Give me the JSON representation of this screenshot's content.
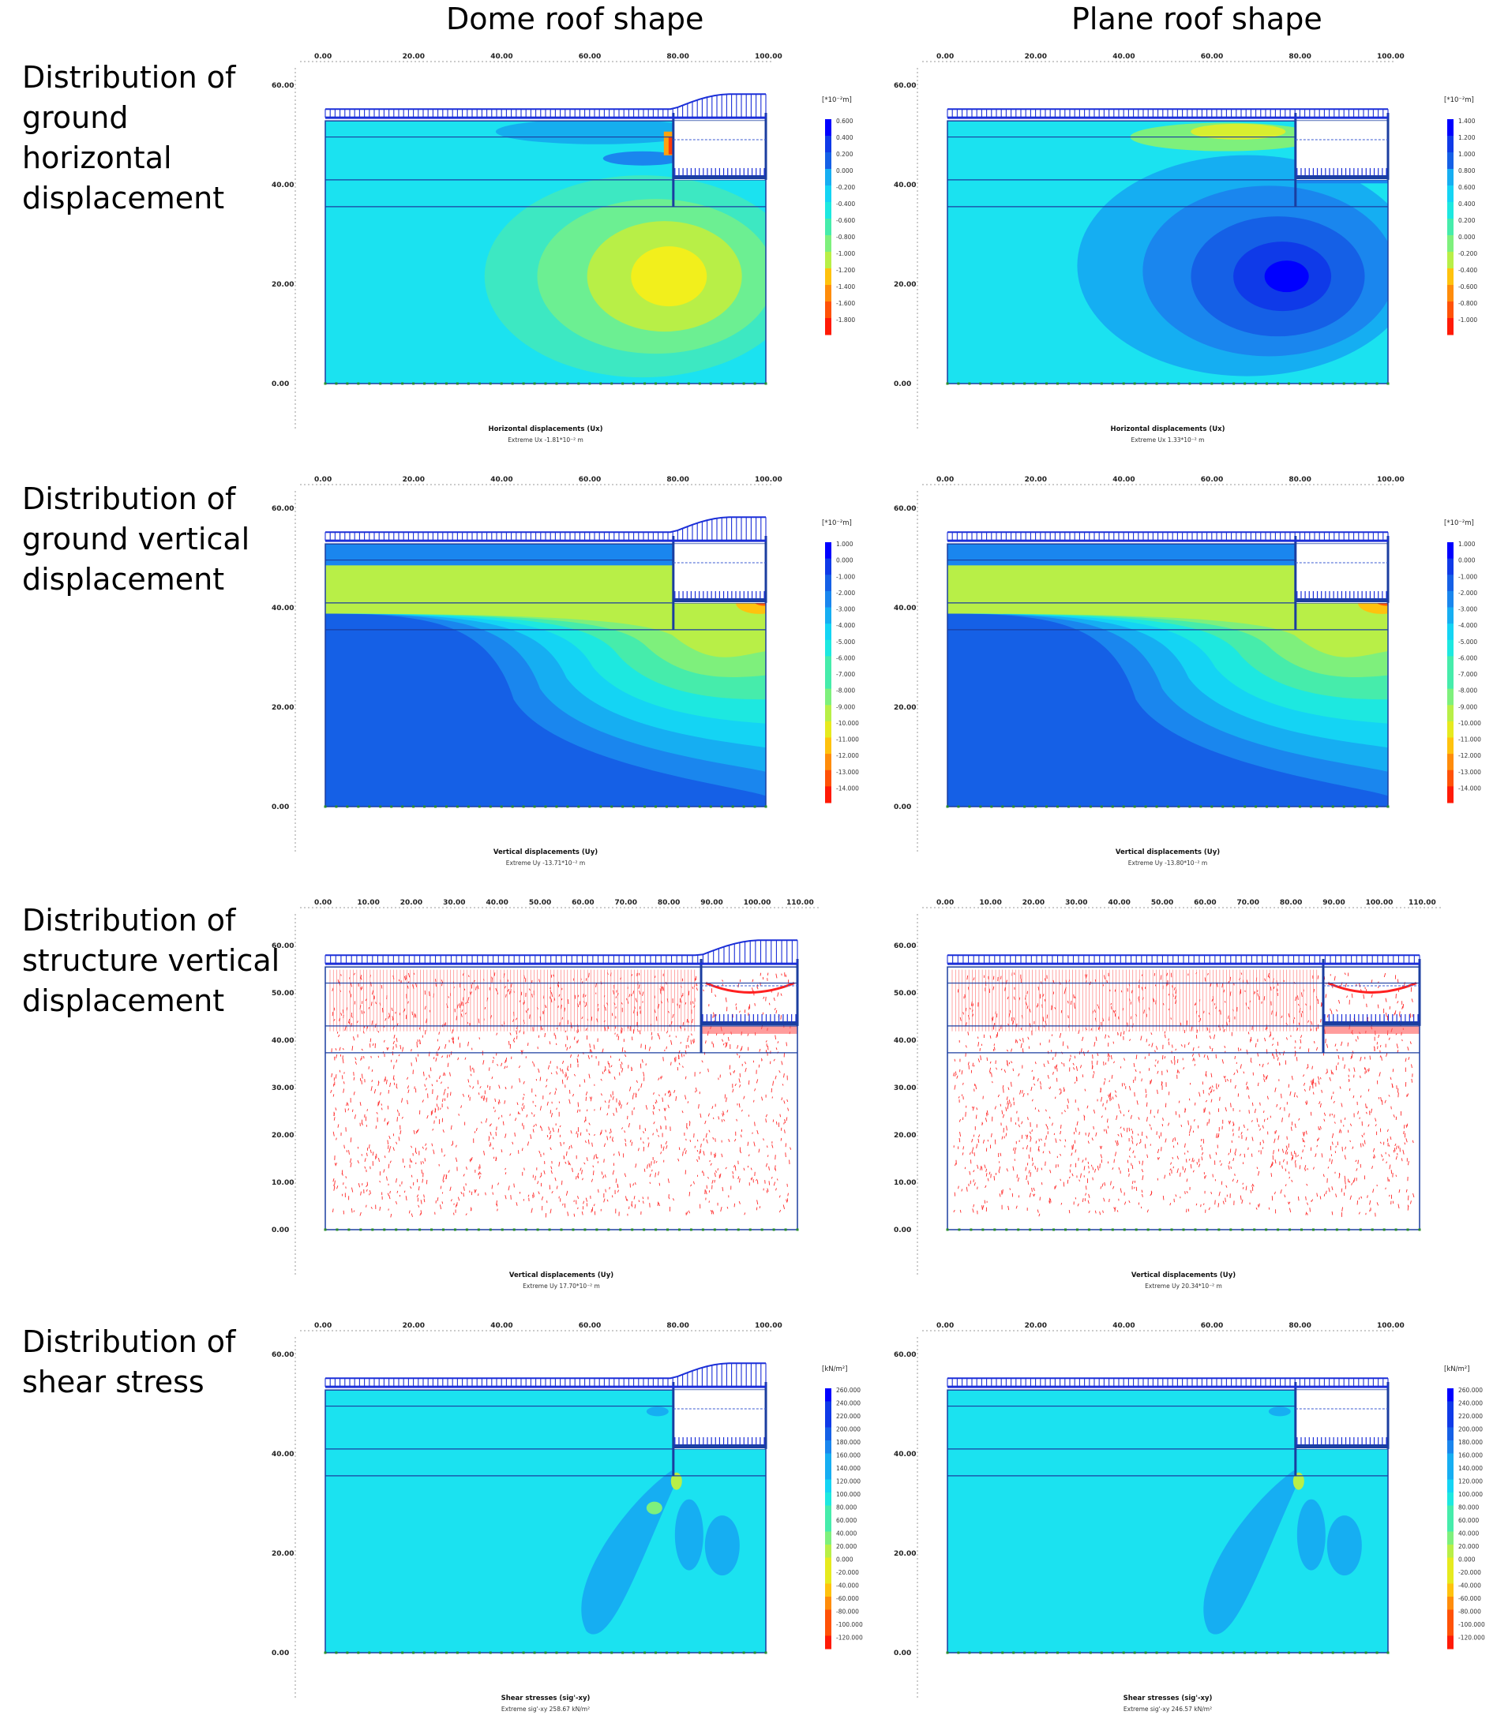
{
  "columns": [
    "Dome roof shape",
    "Plane roof shape"
  ],
  "rows": [
    {
      "label": "Distribution of\nground\nhorizontal\ndisplacement",
      "panels": [
        {
          "x_ticks": [
            "0.00",
            "20.00",
            "40.00",
            "60.00",
            "80.00",
            "100.00"
          ],
          "y_ticks": [
            "60.00",
            "40.00",
            "20.00",
            "0.00"
          ],
          "unit": "[*10⁻²m]",
          "legend": [
            "0.600",
            "0.400",
            "0.200",
            "0.000",
            "-0.200",
            "-0.400",
            "-0.600",
            "-0.800",
            "-1.000",
            "-1.200",
            "-1.400",
            "-1.600",
            "-1.800"
          ],
          "palette": "reverse",
          "caption": "Horizontal displacements (Ux)",
          "extreme": "Extreme Ux -1.81*10⁻² m"
        },
        {
          "x_ticks": [
            "0.00",
            "20.00",
            "40.00",
            "60.00",
            "80.00",
            "100.00"
          ],
          "y_ticks": [
            "60.00",
            "40.00",
            "20.00",
            "0.00"
          ],
          "unit": "[*10⁻²m]",
          "legend": [
            "1.400",
            "1.200",
            "1.000",
            "0.800",
            "0.600",
            "0.400",
            "0.200",
            "0.000",
            "-0.200",
            "-0.400",
            "-0.600",
            "-0.800",
            "-1.000"
          ],
          "palette": "normal",
          "caption": "Horizontal displacements (Ux)",
          "extreme": "Extreme Ux 1.33*10⁻² m"
        }
      ]
    },
    {
      "label": "Distribution of\nground vertical\ndisplacement",
      "panels": [
        {
          "x_ticks": [
            "0.00",
            "20.00",
            "40.00",
            "60.00",
            "80.00",
            "100.00"
          ],
          "y_ticks": [
            "60.00",
            "40.00",
            "20.00",
            "0.00"
          ],
          "unit": "[*10⁻²m]",
          "legend": [
            "1.000",
            "0.000",
            "-1.000",
            "-2.000",
            "-3.000",
            "-4.000",
            "-5.000",
            "-6.000",
            "-7.000",
            "-8.000",
            "-9.000",
            "-10.000",
            "-11.000",
            "-12.000",
            "-13.000",
            "-14.000"
          ],
          "palette": "reverse",
          "caption": "Vertical displacements (Uy)",
          "extreme": "Extreme Uy -13.71*10⁻² m"
        },
        {
          "x_ticks": [
            "0.00",
            "20.00",
            "40.00",
            "60.00",
            "80.00",
            "100.00"
          ],
          "y_ticks": [
            "60.00",
            "40.00",
            "20.00",
            "0.00"
          ],
          "unit": "[*10⁻²m]",
          "legend": [
            "1.000",
            "0.000",
            "-1.000",
            "-2.000",
            "-3.000",
            "-4.000",
            "-5.000",
            "-6.000",
            "-7.000",
            "-8.000",
            "-9.000",
            "-10.000",
            "-11.000",
            "-12.000",
            "-13.000",
            "-14.000"
          ],
          "palette": "reverse",
          "caption": "Vertical displacements (Uy)",
          "extreme": "Extreme Uy -13.80*10⁻² m"
        }
      ]
    },
    {
      "label": "Distribution of\nstructure vertical\ndisplacement",
      "panels": [
        {
          "x_ticks": [
            "0.00",
            "10.00",
            "20.00",
            "30.00",
            "40.00",
            "50.00",
            "60.00",
            "70.00",
            "80.00",
            "90.00",
            "100.00",
            "110.00"
          ],
          "y_ticks": [
            "60.00",
            "50.00",
            "40.00",
            "30.00",
            "20.00",
            "10.00",
            "0.00"
          ],
          "caption": "Vertical displacements (Uy)",
          "extreme": "Extreme Uy 17.70*10⁻² m"
        },
        {
          "x_ticks": [
            "0.00",
            "10.00",
            "20.00",
            "30.00",
            "40.00",
            "50.00",
            "60.00",
            "70.00",
            "80.00",
            "90.00",
            "100.00",
            "110.00"
          ],
          "y_ticks": [
            "60.00",
            "50.00",
            "40.00",
            "30.00",
            "20.00",
            "10.00",
            "0.00"
          ],
          "caption": "Vertical displacements (Uy)",
          "extreme": "Extreme Uy 20.34*10⁻² m"
        }
      ]
    },
    {
      "label": "Distribution of\nshear stress",
      "panels": [
        {
          "x_ticks": [
            "0.00",
            "20.00",
            "40.00",
            "60.00",
            "80.00",
            "100.00"
          ],
          "y_ticks": [
            "60.00",
            "40.00",
            "20.00",
            "0.00"
          ],
          "unit": "[kN/m²]",
          "legend": [
            "260.000",
            "240.000",
            "220.000",
            "200.000",
            "180.000",
            "160.000",
            "140.000",
            "120.000",
            "100.000",
            "80.000",
            "60.000",
            "40.000",
            "20.000",
            "0.000",
            "-20.000",
            "-40.000",
            "-60.000",
            "-80.000",
            "-100.000",
            "-120.000"
          ],
          "palette": "reverse",
          "caption": "Shear stresses (sig'-xy)",
          "extreme": "Extreme sig'-xy 258.67 kN/m²"
        },
        {
          "x_ticks": [
            "0.00",
            "20.00",
            "40.00",
            "60.00",
            "80.00",
            "100.00"
          ],
          "y_ticks": [
            "60.00",
            "40.00",
            "20.00",
            "0.00"
          ],
          "unit": "[kN/m²]",
          "legend": [
            "260.000",
            "240.000",
            "220.000",
            "200.000",
            "180.000",
            "160.000",
            "140.000",
            "120.000",
            "100.000",
            "80.000",
            "60.000",
            "40.000",
            "20.000",
            "0.000",
            "-20.000",
            "-40.000",
            "-60.000",
            "-80.000",
            "-100.000",
            "-120.000"
          ],
          "palette": "reverse",
          "caption": "Shear stresses (sig'-xy)",
          "extreme": "Extreme sig'-xy 246.57 kN/m²"
        }
      ]
    }
  ]
}
